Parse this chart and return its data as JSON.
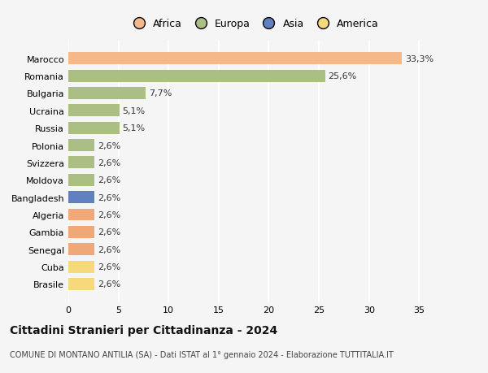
{
  "countries": [
    "Brasile",
    "Cuba",
    "Senegal",
    "Gambia",
    "Algeria",
    "Bangladesh",
    "Moldova",
    "Svizzera",
    "Polonia",
    "Russia",
    "Ucraina",
    "Bulgaria",
    "Romania",
    "Marocco"
  ],
  "values": [
    2.6,
    2.6,
    2.6,
    2.6,
    2.6,
    2.6,
    2.6,
    2.6,
    2.6,
    5.1,
    5.1,
    7.7,
    25.6,
    33.3
  ],
  "labels": [
    "2,6%",
    "2,6%",
    "2,6%",
    "2,6%",
    "2,6%",
    "2,6%",
    "2,6%",
    "2,6%",
    "2,6%",
    "5,1%",
    "5,1%",
    "7,7%",
    "25,6%",
    "33,3%"
  ],
  "colors": [
    "#F5D97A",
    "#F5D97A",
    "#F0A878",
    "#F0A878",
    "#F0A878",
    "#6080C0",
    "#ABBE84",
    "#ABBE84",
    "#ABBE84",
    "#ABBE84",
    "#ABBE84",
    "#ABBE84",
    "#ABBE84",
    "#F5B888"
  ],
  "continent_colors": {
    "Africa": "#F5B888",
    "Europa": "#ABBE84",
    "Asia": "#6080C0",
    "America": "#F5D97A"
  },
  "title": "Cittadini Stranieri per Cittadinanza - 2024",
  "subtitle": "COMUNE DI MONTANO ANTILIA (SA) - Dati ISTAT al 1° gennaio 2024 - Elaborazione TUTTITALIA.IT",
  "xlim": [
    0,
    37
  ],
  "xticks": [
    0,
    5,
    10,
    15,
    20,
    25,
    30,
    35
  ],
  "background_color": "#f5f5f5",
  "grid_color": "#ffffff",
  "bar_label_fontsize": 8,
  "tick_fontsize": 8,
  "legend_fontsize": 9,
  "title_fontsize": 10,
  "subtitle_fontsize": 7
}
